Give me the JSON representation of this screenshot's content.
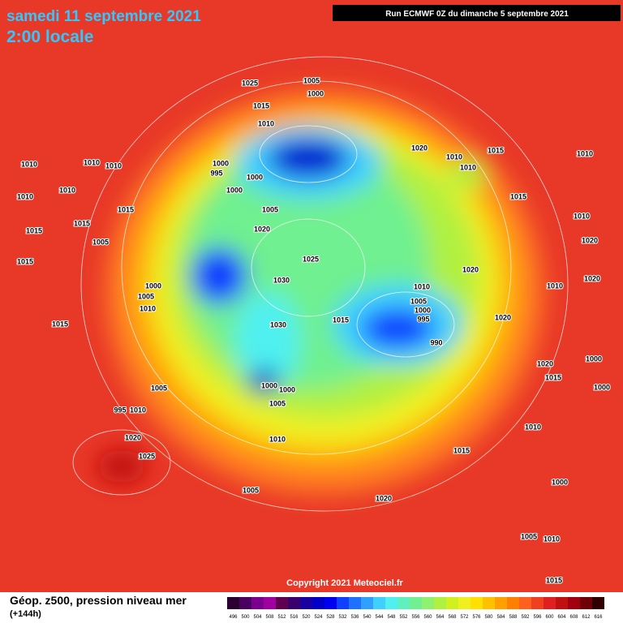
{
  "header": {
    "date": "samedi 11 septembre 2021",
    "time": "2:00 locale",
    "run": "Run ECMWF 0Z du dimanche 5 septembre 2021"
  },
  "copyright": "Copyright 2021 Meteociel.fr",
  "legend": {
    "title": "Géop. z500, pression niveau mer",
    "lead": "(+144h)",
    "labels": [
      "496",
      "500",
      "504",
      "508",
      "512",
      "516",
      "520",
      "524",
      "528",
      "532",
      "536",
      "540",
      "544",
      "548",
      "552",
      "556",
      "560",
      "564",
      "568",
      "572",
      "576",
      "580",
      "584",
      "588",
      "592",
      "596",
      "600",
      "604",
      "608",
      "612",
      "616"
    ],
    "colors": [
      "#2a0030",
      "#4b0060",
      "#7a0090",
      "#a000a0",
      "#600050",
      "#3a0070",
      "#1a00a0",
      "#0000c8",
      "#0000f0",
      "#1040ff",
      "#2070ff",
      "#30a0ff",
      "#40d0ff",
      "#50f0f0",
      "#60f0c0",
      "#70f090",
      "#90f070",
      "#b0f040",
      "#d0f020",
      "#f0f020",
      "#ffe000",
      "#ffc000",
      "#ffa000",
      "#ff8000",
      "#ff6020",
      "#f04020",
      "#e02020",
      "#c01010",
      "#a00010",
      "#700008",
      "#300000"
    ]
  },
  "isobar_labels": [
    "1025",
    "1005",
    "1000",
    "1015",
    "1010",
    "1020",
    "1010",
    "1015",
    "1010",
    "1010",
    "1000",
    "995",
    "1000",
    "1000",
    "1010",
    "1010",
    "1010",
    "1010",
    "1010",
    "1015",
    "1015",
    "1015",
    "1005",
    "1015",
    "1005",
    "1020",
    "1015",
    "1010",
    "1020",
    "1025",
    "1030",
    "1020",
    "1000",
    "1005",
    "1010",
    "1015",
    "1010",
    "1005",
    "1000",
    "995",
    "990",
    "1015",
    "1030",
    "1020",
    "1000",
    "1000",
    "1005",
    "1005",
    "995",
    "1010",
    "1020",
    "1025",
    "1010",
    "1005",
    "1015",
    "1020",
    "1005",
    "1010",
    "1000",
    "1010",
    "1015",
    "1020",
    "1000",
    "1000",
    "1015",
    "1010",
    "1020"
  ]
}
